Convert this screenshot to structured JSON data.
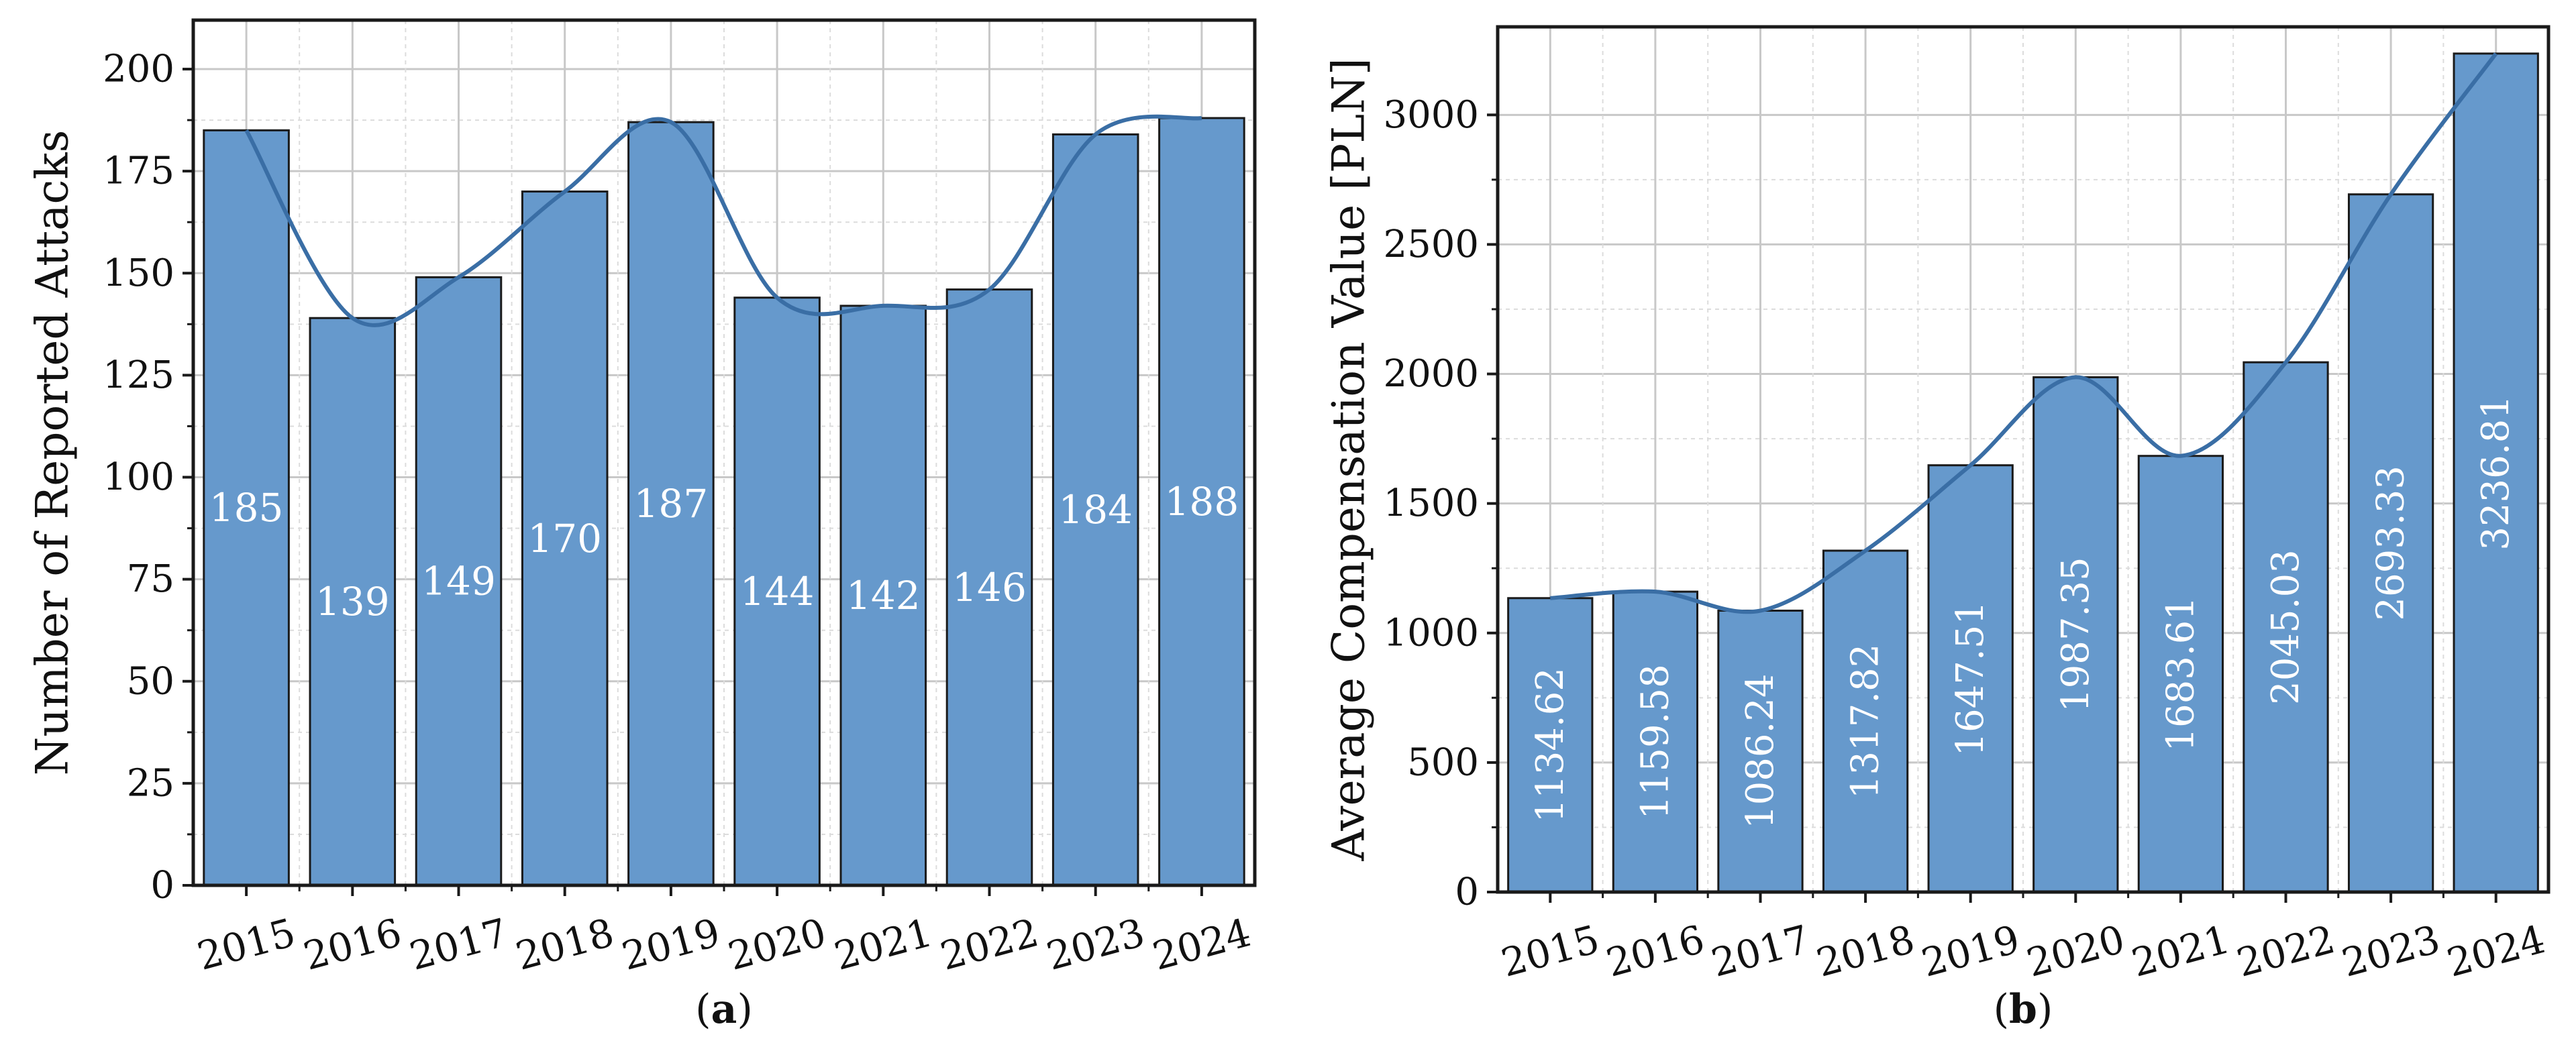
{
  "chart_data": [
    {
      "type": "bar",
      "panel_label": "a",
      "categories": [
        "2015",
        "2016",
        "2017",
        "2018",
        "2019",
        "2020",
        "2021",
        "2022",
        "2023",
        "2024"
      ],
      "values": [
        185,
        139,
        149,
        170,
        187,
        144,
        142,
        146,
        184,
        188
      ],
      "data_labels": [
        "185",
        "139",
        "149",
        "170",
        "187",
        "144",
        "142",
        "146",
        "184",
        "188"
      ],
      "data_label_orientation": "horizontal",
      "ylabel": "Number of Reported Attacks",
      "xlabel": "",
      "ylim": [
        0,
        212
      ],
      "yticks": [
        0,
        25,
        50,
        75,
        100,
        125,
        150,
        175,
        200
      ],
      "ytick_labels": [
        "0",
        "25",
        "50",
        "75",
        "100",
        "125",
        "150",
        "175",
        "200"
      ],
      "trend_line": true,
      "grid": true,
      "bar_color": "#6699cc",
      "line_color": "#3a6ea5"
    },
    {
      "type": "bar",
      "panel_label": "b",
      "categories": [
        "2015",
        "2016",
        "2017",
        "2018",
        "2019",
        "2020",
        "2021",
        "2022",
        "2023",
        "2024"
      ],
      "values": [
        1134.62,
        1159.58,
        1086.24,
        1317.82,
        1647.51,
        1987.35,
        1683.61,
        2045.03,
        2693.33,
        3236.81
      ],
      "data_labels": [
        "1134.62",
        "1159.58",
        "1086.24",
        "1317.82",
        "1647.51",
        "1987.35",
        "1683.61",
        "2045.03",
        "2693.33",
        "3236.81"
      ],
      "data_label_orientation": "vertical",
      "ylabel": "Average Compensation Value [PLN]",
      "xlabel": "",
      "ylim": [
        0,
        3340
      ],
      "yticks": [
        0,
        500,
        1000,
        1500,
        2000,
        2500,
        3000
      ],
      "ytick_labels": [
        "0",
        "500",
        "1000",
        "1500",
        "2000",
        "2500",
        "3000"
      ],
      "trend_line": true,
      "grid": true,
      "bar_color": "#6699cc",
      "line_color": "#3a6ea5"
    }
  ]
}
